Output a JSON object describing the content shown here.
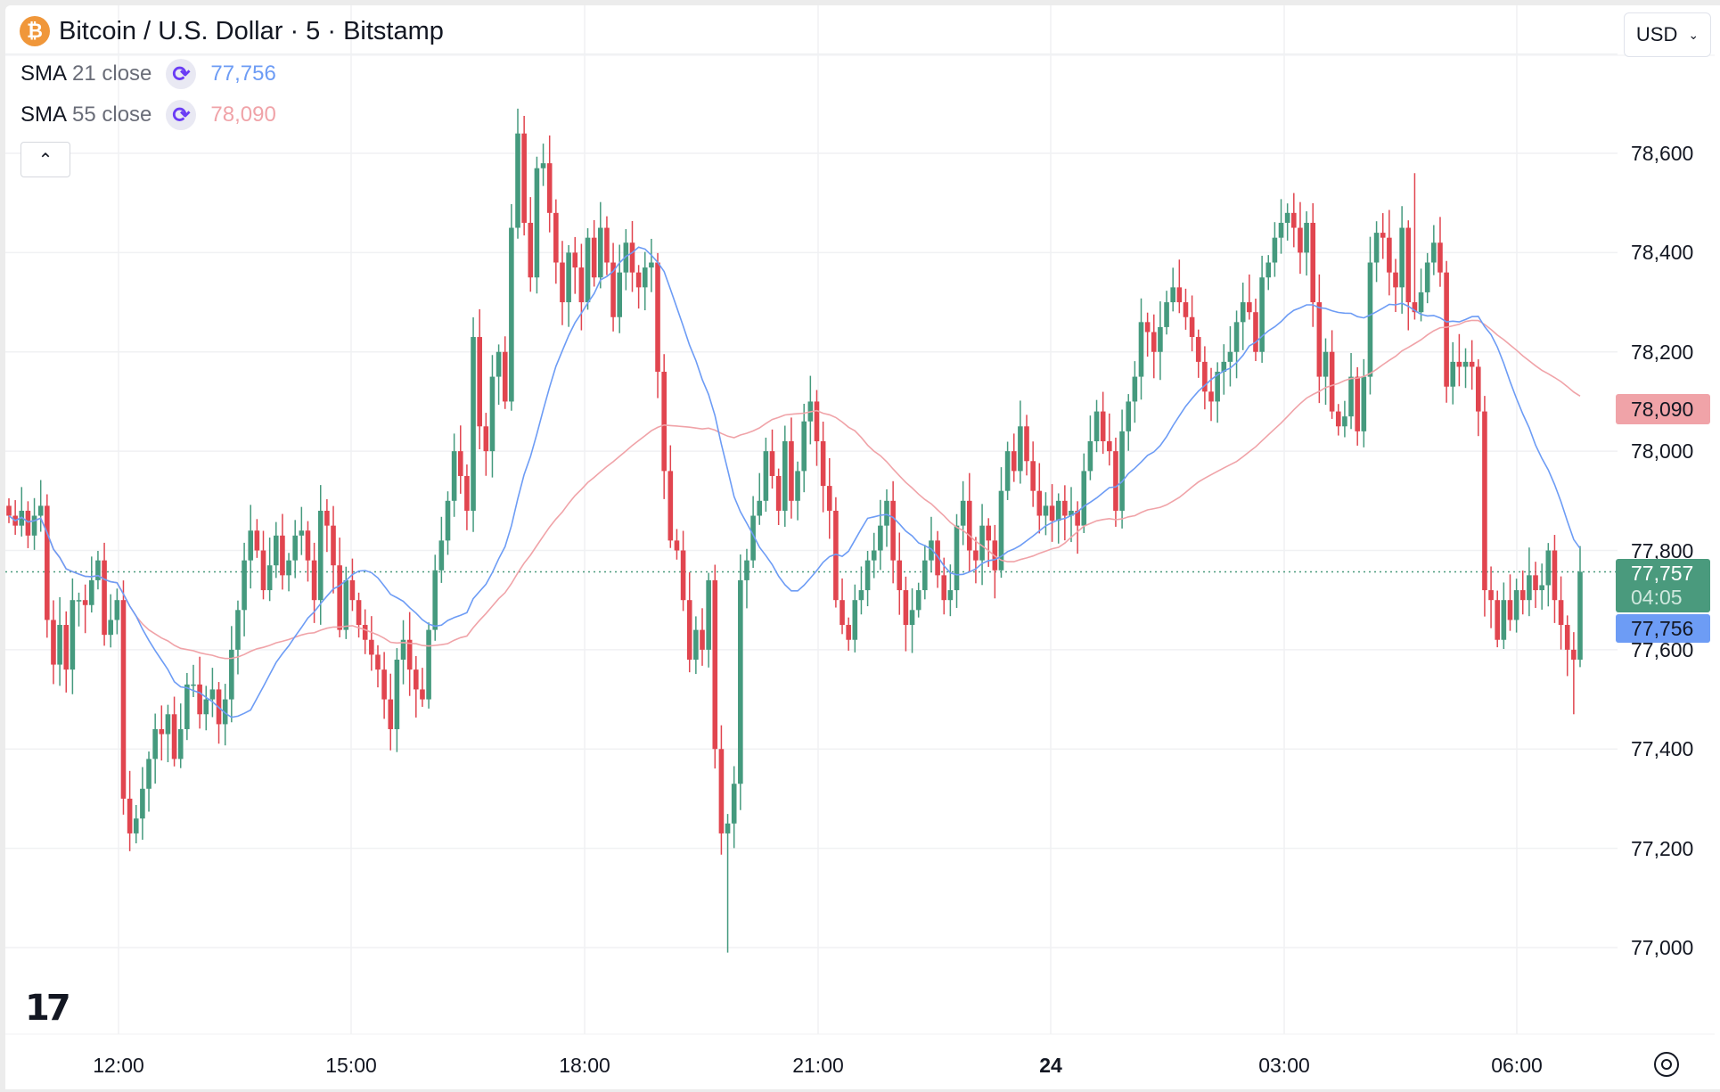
{
  "header": {
    "symbol_icon": "bitcoin-icon",
    "title": "Bitcoin / U.S. Dollar · 5 · Bitstamp",
    "currency": "USD"
  },
  "indicators": [
    {
      "name": "SMA",
      "params": "21 close",
      "value": "77,756",
      "color": "#6d9cf5"
    },
    {
      "name": "SMA",
      "params": "55 close",
      "value": "78,090",
      "color": "#f0a3a8"
    }
  ],
  "price_tags": {
    "sma55": {
      "value": "78,090",
      "color": "#f0a3a8"
    },
    "last": {
      "value": "77,757",
      "countdown": "04:05",
      "color": "#4a9a7d"
    },
    "sma21": {
      "value": "77,756",
      "color": "#6d9cf5"
    }
  },
  "colors": {
    "up": "#459a7e",
    "down": "#e1454f"
  },
  "chart_data": {
    "type": "candlestick",
    "title": "Bitcoin / U.S. Dollar · 5 · Bitstamp",
    "interval_minutes": 5,
    "ylim": [
      76900,
      78800
    ],
    "y_ticks": [
      "78,600",
      "78,400",
      "78,200",
      "78,000",
      "77,800",
      "77,600",
      "77,400",
      "77,200",
      "77,000"
    ],
    "x_ticks": [
      "12:00",
      "15:00",
      "18:00",
      "21:00",
      "24",
      "03:00",
      "06:00"
    ],
    "grid": true,
    "closes": [
      77870,
      77850,
      77880,
      77830,
      77870,
      77890,
      77660,
      77570,
      77650,
      77560,
      77700,
      77700,
      77690,
      77740,
      77780,
      77630,
      77660,
      77700,
      77300,
      77230,
      77260,
      77320,
      77380,
      77440,
      77430,
      77470,
      77380,
      77440,
      77530,
      77530,
      77470,
      77500,
      77520,
      77450,
      77500,
      77600,
      77680,
      77780,
      77840,
      77800,
      77720,
      77770,
      77830,
      77750,
      77780,
      77830,
      77840,
      77780,
      77700,
      77880,
      77850,
      77770,
      77640,
      77740,
      77700,
      77650,
      77620,
      77590,
      77560,
      77500,
      77440,
      77580,
      77620,
      77560,
      77520,
      77500,
      77640,
      77760,
      77820,
      77900,
      78000,
      77950,
      77880,
      78230,
      78050,
      78000,
      78150,
      78200,
      78100,
      78450,
      78640,
      78460,
      78350,
      78570,
      78580,
      78480,
      78380,
      78300,
      78400,
      78370,
      78300,
      78430,
      78350,
      78450,
      78380,
      78270,
      78360,
      78420,
      78360,
      78330,
      78370,
      78380,
      78160,
      77960,
      77820,
      77800,
      77700,
      77580,
      77640,
      77600,
      77740,
      77400,
      77230,
      77250,
      77330,
      77740,
      77780,
      77870,
      77900,
      78000,
      77950,
      77880,
      78020,
      77900,
      77960,
      78060,
      78100,
      78020,
      77930,
      77880,
      77700,
      77650,
      77620,
      77700,
      77720,
      77780,
      77800,
      77850,
      77900,
      77780,
      77720,
      77650,
      77680,
      77720,
      77780,
      77820,
      77750,
      77700,
      77720,
      77850,
      77900,
      77800,
      77780,
      77850,
      77820,
      77760,
      77920,
      78000,
      77960,
      78050,
      77980,
      77920,
      77870,
      77890,
      77860,
      77900,
      77870,
      77880,
      77850,
      77960,
      78020,
      78080,
      78020,
      78000,
      77880,
      78040,
      78100,
      78150,
      78260,
      78240,
      78200,
      78250,
      78300,
      78330,
      78300,
      78270,
      78230,
      78180,
      78120,
      78100,
      78160,
      78180,
      78200,
      78260,
      78300,
      78280,
      78200,
      78350,
      78380,
      78430,
      78460,
      78480,
      78450,
      78400,
      78460,
      78300,
      78150,
      78200,
      78080,
      78050,
      78070,
      78150,
      78040,
      78150,
      78380,
      78440,
      78430,
      78360,
      78330,
      78450,
      78300,
      78280,
      78320,
      78380,
      78420,
      78360,
      78130,
      78180,
      78170,
      78180,
      78170,
      78080,
      77720,
      77700,
      77620,
      77700,
      77660,
      77720,
      77700,
      77750,
      77720,
      77730,
      77800,
      77700,
      77650,
      77600,
      77580,
      77757
    ],
    "notable_extremes": [
      {
        "candle": 80,
        "high": 78690
      },
      {
        "candle": 113,
        "low": 76990
      },
      {
        "candle": 20,
        "low": 77210
      },
      {
        "candle": 221,
        "high": 78560
      },
      {
        "candle": 246,
        "low": 77470
      },
      {
        "candle": 202,
        "high": 78520
      }
    ],
    "last_price": 77757
  }
}
